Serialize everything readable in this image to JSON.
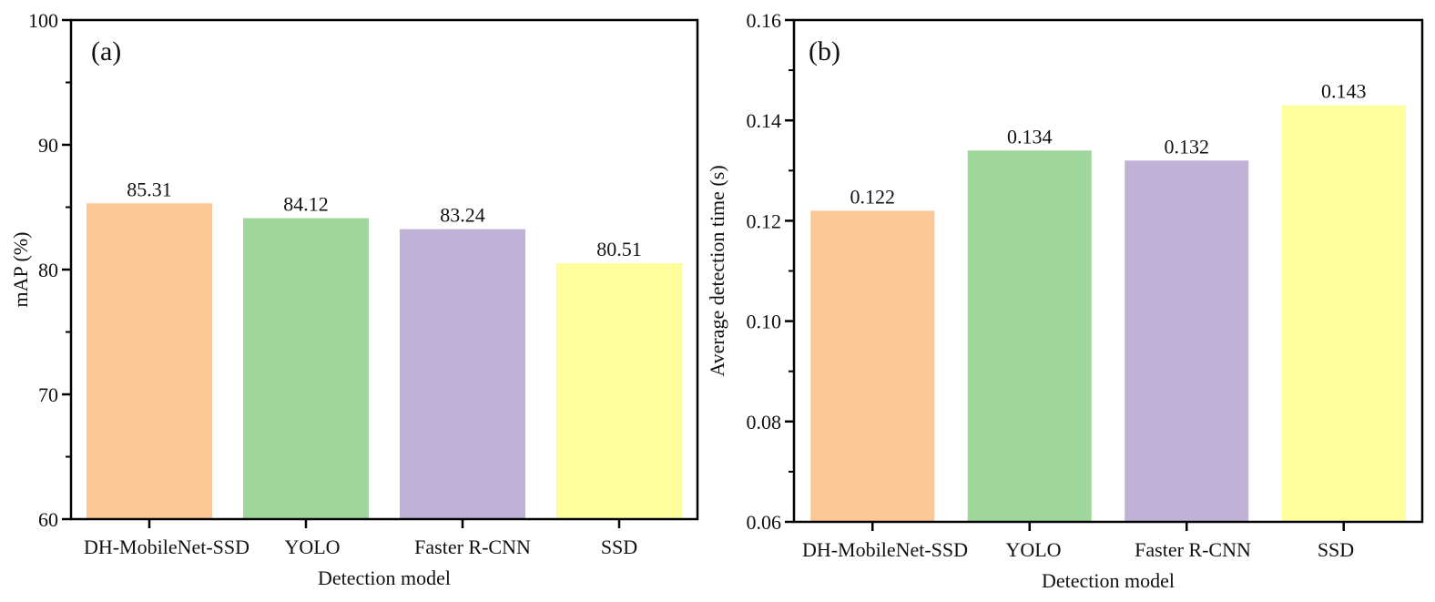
{
  "chart_data": [
    {
      "type": "bar",
      "panel_label": "(a)",
      "title": "",
      "xlabel": "Detection model",
      "ylabel": "mAP (%)",
      "categories": [
        "DH-MobileNet-SSD",
        "YOLO",
        "Faster R-CNN",
        "SSD"
      ],
      "values": [
        85.31,
        84.12,
        83.24,
        80.51
      ],
      "value_labels": [
        "85.31",
        "84.12",
        "83.24",
        "80.51"
      ],
      "colors": [
        "#FCC896",
        "#9ED69C",
        "#C0B2D6",
        "#FEFE9C"
      ],
      "ylim": [
        60,
        100
      ],
      "yticks": [
        60,
        70,
        80,
        90,
        100
      ],
      "ytick_labels": [
        "60",
        "70",
        "80",
        "90",
        "100"
      ],
      "minor_yticks": [
        65,
        75,
        85,
        95
      ],
      "grid": false,
      "legend": "none"
    },
    {
      "type": "bar",
      "panel_label": "(b)",
      "title": "",
      "xlabel": "Detection model",
      "ylabel": "Average detection time (s)",
      "categories": [
        "DH-MobileNet-SSD",
        "YOLO",
        "Faster R-CNN",
        "SSD"
      ],
      "values": [
        0.122,
        0.134,
        0.132,
        0.143
      ],
      "value_labels": [
        "0.122",
        "0.134",
        "0.132",
        "0.143"
      ],
      "colors": [
        "#FCC896",
        "#9ED69C",
        "#C0B2D6",
        "#FEFE9C"
      ],
      "ylim": [
        0.06,
        0.16
      ],
      "yticks": [
        0.06,
        0.08,
        0.1,
        0.12,
        0.14,
        0.16
      ],
      "ytick_labels": [
        "0.06",
        "0.08",
        "0.10",
        "0.12",
        "0.14",
        "0.16"
      ],
      "minor_yticks": [
        0.07,
        0.09,
        0.11,
        0.13,
        0.15
      ],
      "grid": false,
      "legend": "none"
    }
  ]
}
